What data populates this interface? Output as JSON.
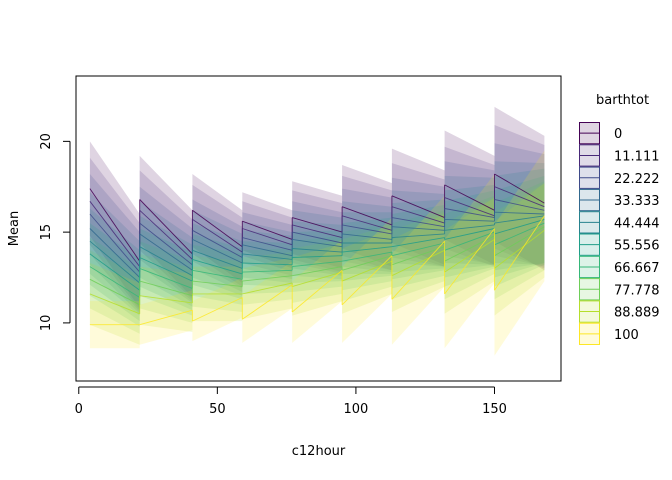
{
  "chart_data": {
    "type": "area",
    "title": "",
    "xlabel": "c12hour",
    "ylabel": "Mean",
    "xlim": [
      -1,
      174
    ],
    "ylim": [
      6.8,
      23.6
    ],
    "xticks": [
      0,
      50,
      100,
      150
    ],
    "yticks": [
      10,
      15,
      20
    ],
    "grid": false,
    "legend_title": "barthtot",
    "legend_position": "right",
    "segment_x": [
      [
        4,
        22
      ],
      [
        22,
        41
      ],
      [
        41,
        59
      ],
      [
        59,
        77
      ],
      [
        77,
        95
      ],
      [
        95,
        113
      ],
      [
        113,
        132
      ],
      [
        132,
        150
      ],
      [
        150,
        168
      ]
    ],
    "series": [
      {
        "name": "0",
        "color": "#440154",
        "start": [
          17.4,
          16.8,
          16.2,
          15.6,
          15.8,
          16.4,
          17.0,
          17.6,
          18.2
        ],
        "end": [
          13.4,
          13.8,
          14.2,
          14.6,
          15.0,
          15.4,
          15.8,
          16.2,
          16.6
        ],
        "band": [
          2.6,
          2.4,
          2.0,
          1.6,
          2.0,
          2.3,
          2.6,
          3.0,
          3.7
        ]
      },
      {
        "name": "11.111",
        "color": "#482878",
        "start": [
          16.7,
          16.2,
          15.7,
          15.2,
          15.4,
          15.9,
          16.4,
          16.9,
          17.5
        ],
        "end": [
          13.1,
          13.5,
          13.9,
          14.3,
          14.7,
          15.1,
          15.5,
          15.9,
          16.4
        ],
        "band": [
          2.4,
          2.2,
          1.9,
          1.5,
          1.9,
          2.2,
          2.4,
          2.8,
          3.4
        ]
      },
      {
        "name": "22.222",
        "color": "#3E4A89",
        "start": [
          16.0,
          15.5,
          15.1,
          14.7,
          15.0,
          15.4,
          15.8,
          16.3,
          16.8
        ],
        "end": [
          12.8,
          13.2,
          13.6,
          14.0,
          14.4,
          14.9,
          15.3,
          15.8,
          16.2
        ],
        "band": [
          2.2,
          2.0,
          1.7,
          1.4,
          1.7,
          2.0,
          2.2,
          2.6,
          3.1
        ]
      },
      {
        "name": "33.333",
        "color": "#31688E",
        "start": [
          15.2,
          14.9,
          14.6,
          14.3,
          14.6,
          14.9,
          15.3,
          15.7,
          16.1
        ],
        "end": [
          12.5,
          12.9,
          13.3,
          13.7,
          14.2,
          14.6,
          15.1,
          15.6,
          16.0
        ],
        "band": [
          2.0,
          1.8,
          1.6,
          1.3,
          1.6,
          1.8,
          2.0,
          2.4,
          2.8
        ]
      },
      {
        "name": "44.444",
        "color": "#26828E",
        "start": [
          14.5,
          14.2,
          14.0,
          13.8,
          14.1,
          14.4,
          14.7,
          15.1,
          15.5
        ],
        "end": [
          12.2,
          12.6,
          13.0,
          13.5,
          13.9,
          14.4,
          14.9,
          15.4,
          15.9
        ],
        "band": [
          1.8,
          1.7,
          1.5,
          1.3,
          1.5,
          1.7,
          1.9,
          2.2,
          2.6
        ]
      },
      {
        "name": "55.556",
        "color": "#1F9E89",
        "start": [
          13.8,
          13.6,
          13.5,
          13.3,
          13.6,
          13.9,
          14.2,
          14.6,
          14.9
        ],
        "end": [
          11.8,
          12.3,
          12.7,
          13.2,
          13.7,
          14.2,
          14.7,
          15.2,
          15.7
        ],
        "band": [
          1.7,
          1.6,
          1.4,
          1.2,
          1.4,
          1.6,
          1.8,
          2.1,
          2.4
        ]
      },
      {
        "name": "66.667",
        "color": "#35B779",
        "start": [
          13.1,
          13.0,
          12.9,
          12.8,
          13.1,
          13.4,
          13.7,
          14.0,
          14.3
        ],
        "end": [
          11.4,
          11.9,
          12.4,
          12.9,
          13.4,
          13.9,
          14.4,
          15.0,
          15.5
        ],
        "band": [
          1.6,
          1.5,
          1.4,
          1.2,
          1.4,
          1.6,
          1.8,
          2.0,
          2.3
        ]
      },
      {
        "name": "77.778",
        "color": "#6ECE58",
        "start": [
          12.4,
          12.3,
          12.3,
          12.3,
          12.6,
          12.9,
          13.2,
          13.4,
          13.7
        ],
        "end": [
          11.0,
          11.5,
          12.0,
          12.6,
          13.1,
          13.7,
          14.2,
          14.8,
          15.3
        ],
        "band": [
          1.6,
          1.5,
          1.4,
          1.3,
          1.5,
          1.7,
          1.9,
          2.1,
          2.4
        ]
      },
      {
        "name": "88.889",
        "color": "#B5DE2B",
        "start": [
          11.6,
          11.5,
          11.6,
          11.6,
          12.0,
          12.3,
          12.6,
          12.8,
          13.0
        ],
        "end": [
          10.5,
          11.1,
          11.6,
          12.2,
          12.8,
          13.4,
          14.0,
          14.6,
          15.1
        ],
        "band": [
          1.7,
          1.6,
          1.5,
          1.4,
          1.6,
          1.8,
          2.0,
          2.3,
          2.6
        ]
      },
      {
        "name": "100",
        "color": "#FDE725",
        "start": [
          9.9,
          9.9,
          10.1,
          10.2,
          10.6,
          11.0,
          11.3,
          11.6,
          11.8
        ],
        "end": [
          9.9,
          10.7,
          11.4,
          12.1,
          12.9,
          13.7,
          14.5,
          15.2,
          15.9
        ],
        "band": [
          1.3,
          1.1,
          1.1,
          1.3,
          1.7,
          2.1,
          2.5,
          3.0,
          3.6
        ]
      }
    ]
  }
}
